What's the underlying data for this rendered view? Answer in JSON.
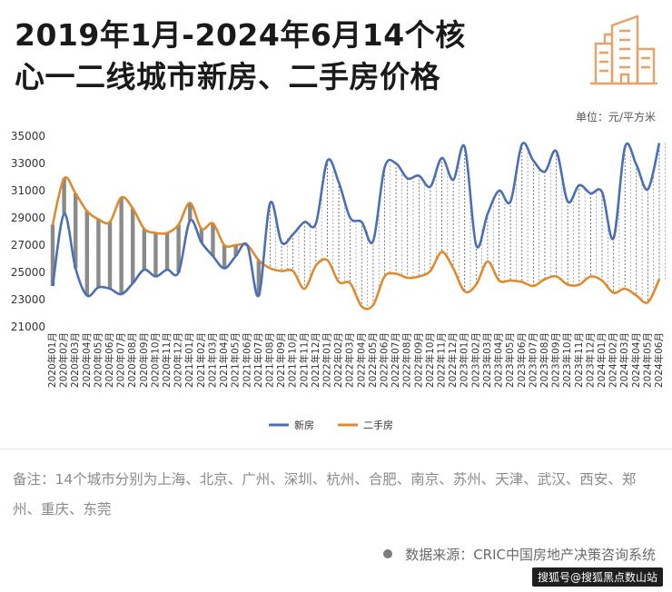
{
  "title_line1": "2019年1月-2024年6月14个核",
  "title_line2": "心一二线城市新房、二手房价格",
  "unit_label": "单位：元/平方米",
  "notes_text": "备注：14个城市分别为上海、北京、广州、深圳、杭州、合肥、南京、苏州、天津、武汉、西安、郑州、重庆、东莞",
  "source_text": "数据来源：CRIC中国房地产决策咨询系统",
  "watermark_text": "搜狐号@搜狐黑点数山站",
  "colors": {
    "new": "#4a6fb5",
    "second": "#e08a2e",
    "band_early": "#8a8a8a",
    "band_late": "#9a9a9a",
    "logo": "#e8a168"
  },
  "chart_data": {
    "type": "line",
    "title": "",
    "xlabel": "",
    "ylabel": "",
    "ylim": [
      21000,
      35000
    ],
    "yticks": [
      21000,
      23000,
      25000,
      27000,
      29000,
      31000,
      33000,
      35000
    ],
    "legend_position": "bottom",
    "grid": false,
    "x": [
      "2020年01月",
      "2020年02月",
      "2020年03月",
      "2020年04月",
      "2020年05月",
      "2020年06月",
      "2020年07月",
      "2020年08月",
      "2020年09月",
      "2020年10月",
      "2020年11月",
      "2020年12月",
      "2021年01月",
      "2021年02月",
      "2021年03月",
      "2021年04月",
      "2021年05月",
      "2021年06月",
      "2021年07月",
      "2021年08月",
      "2021年09月",
      "2021年10月",
      "2021年11月",
      "2021年12月",
      "2022年01月",
      "2022年02月",
      "2022年03月",
      "2022年04月",
      "2022年05月",
      "2022年06月",
      "2022年07月",
      "2022年08月",
      "2022年09月",
      "2022年10月",
      "2022年11月",
      "2022年12月",
      "2023年01月",
      "2023年02月",
      "2023年03月",
      "2023年04月",
      "2023年05月",
      "2023年06月",
      "2023年07月",
      "2023年08月",
      "2023年09月",
      "2023年10月",
      "2023年11月",
      "2023年12月",
      "2024年01月",
      "2024年02月",
      "2024年03月",
      "2024年04月",
      "2024年05月",
      "2024年06月"
    ],
    "series": [
      {
        "name": "新房",
        "values": [
          24000,
          29300,
          25300,
          23300,
          23900,
          23800,
          23400,
          24200,
          25200,
          24700,
          25200,
          25000,
          28800,
          27200,
          26200,
          25300,
          26200,
          27000,
          23300,
          30100,
          27200,
          27800,
          28700,
          28600,
          33200,
          31600,
          29000,
          28700,
          27300,
          32700,
          33000,
          31900,
          32100,
          31300,
          33400,
          31800,
          34200,
          27000,
          29300,
          31000,
          30200,
          34400,
          33200,
          32400,
          33900,
          30200,
          31400,
          30800,
          30900,
          27500,
          34200,
          32900,
          31100,
          34500
        ]
      },
      {
        "name": "二手房",
        "values": [
          28500,
          31900,
          30800,
          29500,
          28900,
          28700,
          30500,
          29700,
          28200,
          27900,
          27900,
          28500,
          30100,
          28200,
          28600,
          27000,
          27000,
          27000,
          25900,
          25300,
          25100,
          25100,
          23800,
          25500,
          25900,
          24300,
          24200,
          22500,
          22600,
          24700,
          24900,
          24600,
          24700,
          25100,
          26500,
          25300,
          23600,
          24100,
          25800,
          24400,
          24400,
          24300,
          24000,
          24500,
          24700,
          24100,
          24100,
          24700,
          24400,
          23500,
          23800,
          23300,
          22800,
          24500
        ]
      }
    ]
  }
}
